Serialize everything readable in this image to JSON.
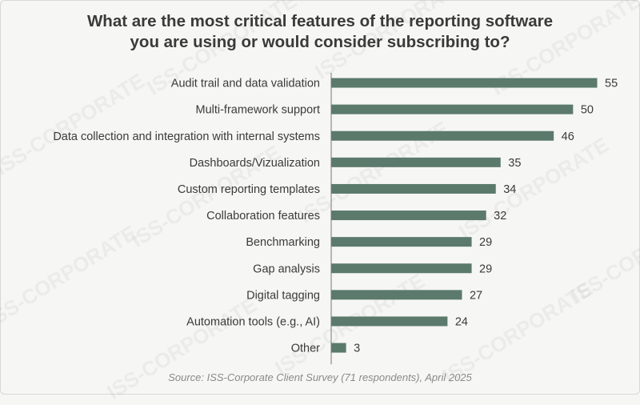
{
  "title_lines": [
    "What are the most critical features of the reporting software",
    "you are using or would consider subscribing to?"
  ],
  "source": "Source: ISS-Corporate Client Survey (71 respondents), April 2025",
  "watermark": "ISS-CORPORATE",
  "colors": {
    "bar": "#5b7a6c",
    "axis": "#777777",
    "text": "#3a3a3a",
    "background": "#f6f6f4"
  },
  "chart_data": {
    "type": "bar",
    "orientation": "horizontal",
    "categories": [
      "Audit trail and data validation",
      "Multi-framework support",
      "Data collection and integration with internal systems",
      "Dashboards/Vizualization",
      "Custom reporting templates",
      "Collaboration features",
      "Benchmarking",
      "Gap analysis",
      "Digital tagging",
      "Automation tools (e.g., AI)",
      "Other"
    ],
    "values": [
      55,
      50,
      46,
      35,
      34,
      32,
      29,
      29,
      27,
      24,
      3
    ],
    "xlim": [
      0,
      55
    ],
    "grid": false,
    "data_labels": true
  }
}
